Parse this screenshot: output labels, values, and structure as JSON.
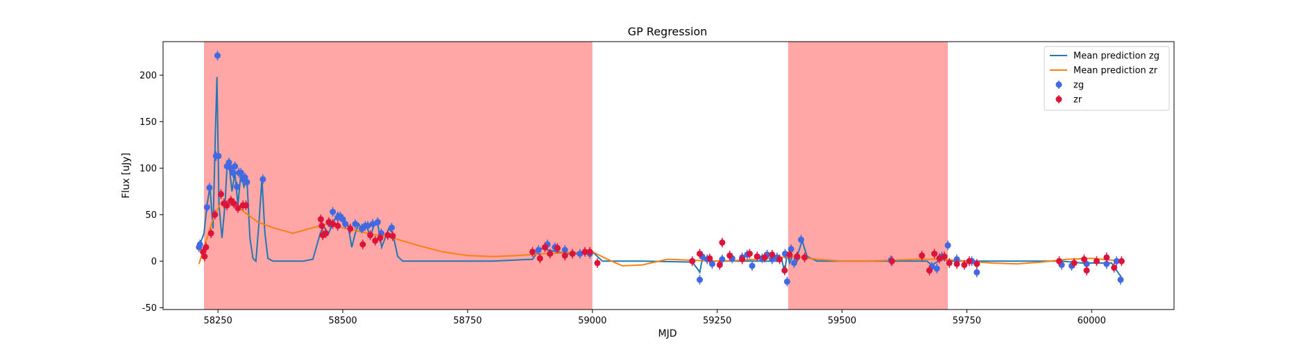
{
  "chart_data": {
    "type": "scatter",
    "title": "GP Regression",
    "xlabel": "MJD",
    "ylabel": "Flux [uJy]",
    "xlim": [
      58140,
      60165
    ],
    "ylim": [
      -52,
      236
    ],
    "x_ticks": [
      58250,
      58500,
      58750,
      59000,
      59250,
      59500,
      59750,
      60000
    ],
    "y_ticks": [
      -50,
      0,
      50,
      100,
      150,
      200
    ],
    "grid": false,
    "legend_position": "top-right",
    "shaded_regions": [
      {
        "x_start": 58222,
        "x_end": 59000,
        "color": "#ff0000",
        "alpha": 0.35
      },
      {
        "x_start": 59392,
        "x_end": 59712,
        "color": "#ff0000",
        "alpha": 0.35
      }
    ],
    "series": [
      {
        "name": "Mean prediction zg",
        "kind": "line",
        "color": "#1f77b4",
        "x": [
          58212,
          58222,
          58228,
          58234,
          58240,
          58245,
          58248,
          58252,
          58258,
          58264,
          58268,
          58272,
          58278,
          58284,
          58290,
          58296,
          58302,
          58308,
          58314,
          58320,
          58326,
          58332,
          58338,
          58344,
          58350,
          58360,
          58380,
          58400,
          58420,
          58440,
          58455,
          58462,
          58470,
          58480,
          58490,
          58500,
          58510,
          58518,
          58525,
          58532,
          58540,
          58548,
          58555,
          58562,
          58570,
          58578,
          58585,
          58592,
          58600,
          58610,
          58620,
          58650,
          58700,
          58800,
          58880,
          58895,
          58910,
          58930,
          58950,
          58970,
          58990,
          59000,
          59020,
          59100,
          59200,
          59210,
          59215,
          59220,
          59230,
          59260,
          59300,
          59340,
          59380,
          59385,
          59390,
          59395,
          59400,
          59410,
          59420,
          59430,
          59450,
          59500,
          59600,
          59670,
          59680,
          59700,
          59720,
          59750,
          59800,
          59900,
          59940,
          59980,
          60040,
          60060
        ],
        "y": [
          15,
          30,
          60,
          80,
          35,
          140,
          198,
          60,
          25,
          60,
          100,
          105,
          75,
          95,
          60,
          95,
          80,
          88,
          25,
          3,
          0,
          40,
          88,
          30,
          3,
          0,
          0,
          0,
          0,
          2,
          30,
          38,
          28,
          40,
          52,
          45,
          40,
          15,
          30,
          40,
          32,
          38,
          25,
          38,
          40,
          15,
          25,
          35,
          30,
          5,
          0,
          0,
          0,
          0,
          2,
          14,
          12,
          10,
          8,
          8,
          8,
          10,
          0,
          0,
          -1,
          -8,
          -12,
          2,
          0,
          0,
          0,
          0,
          0,
          -12,
          8,
          -2,
          5,
          5,
          22,
          5,
          0,
          0,
          0,
          0,
          -4,
          2,
          0,
          0,
          0,
          0,
          0,
          -2,
          -2,
          -18
        ]
      },
      {
        "name": "Mean prediction zr",
        "kind": "line",
        "color": "#ff7f0e",
        "x": [
          58212,
          58225,
          58240,
          58255,
          58270,
          58290,
          58310,
          58330,
          58360,
          58400,
          58440,
          58470,
          58500,
          58550,
          58600,
          58650,
          58700,
          58750,
          58800,
          58850,
          58900,
          58950,
          59000,
          59030,
          59060,
          59100,
          59150,
          59200,
          59250,
          59300,
          59350,
          59400,
          59450,
          59500,
          59550,
          59600,
          59650,
          59700,
          59750,
          59800,
          59850,
          59900,
          59950,
          60000,
          60060
        ],
        "y": [
          -3,
          20,
          45,
          62,
          64,
          58,
          50,
          42,
          36,
          30,
          36,
          40,
          36,
          30,
          25,
          17,
          10,
          6,
          5,
          6,
          8,
          9,
          10,
          2,
          -5,
          -4,
          2,
          1,
          0,
          1,
          3,
          5,
          2,
          0,
          0,
          1,
          2,
          2,
          0,
          -2,
          -3,
          -1,
          2,
          3,
          0
        ]
      },
      {
        "name": "zg",
        "kind": "scatter",
        "color": "#4169e1",
        "x": [
          58212,
          58214,
          58228,
          58233,
          58246,
          58249,
          58251,
          58268,
          58272,
          58276,
          58280,
          58284,
          58288,
          58292,
          58296,
          58300,
          58304,
          58308,
          58340,
          58475,
          58480,
          58490,
          58495,
          58500,
          58505,
          58525,
          58538,
          58545,
          58550,
          58560,
          58570,
          58577,
          58598,
          58892,
          58910,
          58925,
          58945,
          58975,
          58995,
          59215,
          59220,
          59230,
          59240,
          59260,
          59280,
          59300,
          59310,
          59320,
          59330,
          59340,
          59350,
          59360,
          59370,
          59386,
          59390,
          59398,
          59404,
          59410,
          59418,
          59598,
          59680,
          59690,
          59700,
          59712,
          59730,
          59760,
          59770,
          59940,
          59960,
          59990,
          60030,
          60050,
          60058
        ],
        "y": [
          15,
          18,
          58,
          79,
          113,
          221,
          113,
          102,
          106,
          100,
          95,
          102,
          80,
          95,
          95,
          88,
          90,
          85,
          88,
          40,
          53,
          47,
          48,
          45,
          40,
          40,
          35,
          38,
          38,
          40,
          42,
          30,
          36,
          12,
          18,
          15,
          12,
          8,
          8,
          -20,
          5,
          2,
          -3,
          2,
          3,
          4,
          7,
          -5,
          5,
          3,
          7,
          2,
          4,
          8,
          -22,
          13,
          -2,
          4,
          23,
          1,
          -6,
          -8,
          5,
          17,
          2,
          0,
          -12,
          -4,
          -5,
          -3,
          -3,
          0,
          -20
        ]
      },
      {
        "name": "zr",
        "kind": "scatter",
        "color": "#dc143c",
        "x": [
          58220,
          58223,
          58226,
          58236,
          58244,
          58256,
          58262,
          58268,
          58276,
          58282,
          58290,
          58300,
          58306,
          58456,
          58458,
          58460,
          58466,
          58472,
          58480,
          58490,
          58515,
          58540,
          58555,
          58565,
          58575,
          58590,
          58600,
          58880,
          58895,
          58905,
          58915,
          58930,
          58945,
          58960,
          58985,
          58995,
          59010,
          59200,
          59215,
          59235,
          59255,
          59260,
          59275,
          59300,
          59315,
          59330,
          59345,
          59360,
          59375,
          59385,
          59395,
          59410,
          59425,
          59600,
          59660,
          59675,
          59685,
          59695,
          59705,
          59715,
          59730,
          59745,
          59755,
          59770,
          59935,
          59965,
          59985,
          59990,
          60010,
          60030,
          60045,
          60060
        ],
        "y": [
          10,
          5,
          15,
          30,
          50,
          72,
          62,
          60,
          65,
          62,
          57,
          60,
          60,
          45,
          38,
          28,
          30,
          42,
          40,
          38,
          35,
          18,
          28,
          22,
          25,
          28,
          27,
          10,
          3,
          15,
          8,
          14,
          6,
          8,
          10,
          10,
          -2,
          0,
          8,
          3,
          -4,
          20,
          6,
          2,
          8,
          5,
          4,
          7,
          2,
          -10,
          7,
          5,
          4,
          0,
          6,
          -10,
          8,
          3,
          5,
          -2,
          -3,
          -4,
          0,
          -3,
          0,
          -2,
          2,
          -10,
          0,
          4,
          -7,
          0
        ]
      }
    ]
  }
}
